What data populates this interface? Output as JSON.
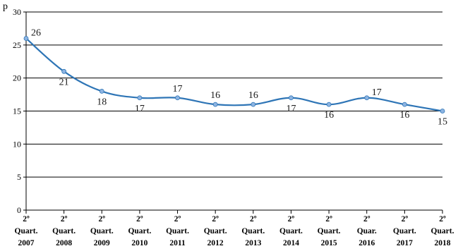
{
  "chart_data": {
    "type": "line",
    "corner_label": "p",
    "categories": [
      [
        "2º",
        "Quart.",
        "2007"
      ],
      [
        "2º",
        "Quart.",
        "2008"
      ],
      [
        "2º",
        "Quart.",
        "2009"
      ],
      [
        "2º",
        "Quart.",
        "2010"
      ],
      [
        "2º",
        "Quart.",
        "2011"
      ],
      [
        "2º",
        "Quart.",
        "2012"
      ],
      [
        "2º",
        "Quart.",
        "2013"
      ],
      [
        "2º",
        "Quart.",
        "2014"
      ],
      [
        "2º",
        "Quart.",
        "2015"
      ],
      [
        "2º",
        "Quar.",
        "2016"
      ],
      [
        "2º",
        "Quart.",
        "2017"
      ],
      [
        "2º",
        "Quart.",
        "2018"
      ]
    ],
    "series": [
      {
        "values": [
          26,
          21,
          18,
          17,
          17,
          16,
          16,
          17,
          16,
          17,
          16,
          15
        ],
        "color": "#2e75b6"
      }
    ],
    "data_label_positions": [
      "right",
      "below",
      "below",
      "below",
      "above",
      "above",
      "above",
      "below",
      "below",
      "right",
      "below",
      "below"
    ],
    "ylim": [
      0,
      30
    ],
    "yticks": [
      0,
      5,
      10,
      15,
      20,
      25,
      30
    ],
    "grid": true,
    "line_smooth": true,
    "grid_color": "#000000",
    "line_color": "#2e75b6",
    "marker_color": "#8db4e2"
  }
}
